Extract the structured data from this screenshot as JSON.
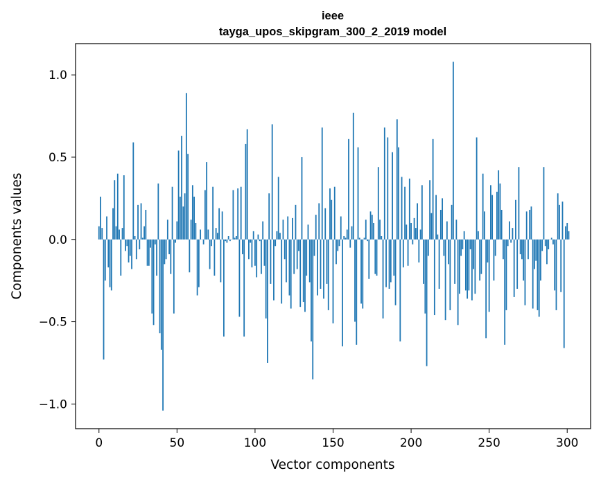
{
  "chart_data": {
    "type": "bar",
    "title_lines": [
      "ieee",
      "tayga_upos_skipgram_300_2_2019 model"
    ],
    "xlabel": "Vector components",
    "ylabel": "Components values",
    "xlim": [
      -15,
      315
    ],
    "ylim": [
      -1.15,
      1.19
    ],
    "x_ticks": [
      0,
      50,
      100,
      150,
      200,
      250,
      300
    ],
    "y_ticks": [
      1.0,
      0.5,
      0.0,
      -0.5,
      -1.0
    ],
    "y_tick_labels": [
      "1.0",
      "0.5",
      "0.0",
      "−0.5",
      "−1.0"
    ],
    "grid": false,
    "bar_color": "#1f77b4",
    "x_start": 0,
    "values": [
      0.08,
      0.26,
      0.07,
      -0.73,
      -0.25,
      0.14,
      -0.17,
      -0.29,
      -0.31,
      0.19,
      0.36,
      0.08,
      0.4,
      0.06,
      -0.22,
      0.07,
      0.39,
      -0.07,
      -0.04,
      -0.14,
      -0.1,
      -0.18,
      0.59,
      0.02,
      -0.12,
      0.21,
      -0.06,
      0.22,
      0.01,
      0.08,
      0.18,
      -0.16,
      -0.16,
      -0.05,
      -0.45,
      -0.52,
      -0.03,
      -0.22,
      0.34,
      -0.57,
      -0.67,
      -1.04,
      -0.15,
      -0.12,
      0.12,
      -0.09,
      -0.21,
      0.32,
      -0.45,
      -0.02,
      0.11,
      0.54,
      0.26,
      0.63,
      0.2,
      0.28,
      0.89,
      0.52,
      -0.2,
      0.12,
      0.33,
      0.26,
      0.1,
      -0.34,
      -0.29,
      0.06,
      0.0,
      -0.03,
      0.3,
      0.47,
      0.06,
      -0.18,
      -0.04,
      0.32,
      -0.22,
      0.07,
      0.04,
      0.19,
      -0.26,
      0.17,
      -0.59,
      -0.01,
      -0.02,
      0.02,
      -0.01,
      0.0,
      0.3,
      0.01,
      0.02,
      0.31,
      -0.47,
      0.32,
      -0.09,
      -0.59,
      0.58,
      0.67,
      -0.12,
      -0.02,
      -0.17,
      0.05,
      -0.16,
      -0.23,
      0.03,
      -0.01,
      -0.21,
      0.11,
      -0.16,
      -0.48,
      -0.75,
      0.28,
      -0.27,
      0.7,
      -0.37,
      -0.04,
      0.05,
      0.38,
      0.04,
      -0.39,
      0.12,
      -0.12,
      -0.26,
      0.14,
      -0.34,
      -0.42,
      0.13,
      -0.21,
      0.21,
      -0.18,
      -0.07,
      -0.41,
      0.5,
      -0.38,
      -0.44,
      -0.22,
      0.09,
      -0.26,
      -0.62,
      -0.85,
      -0.1,
      0.15,
      -0.34,
      0.22,
      -0.3,
      0.68,
      -0.36,
      0.19,
      -0.27,
      -0.43,
      0.31,
      0.24,
      -0.51,
      0.32,
      -0.15,
      -0.07,
      -0.04,
      0.14,
      -0.65,
      0.02,
      0.01,
      0.06,
      0.61,
      -0.05,
      0.08,
      0.77,
      -0.5,
      -0.64,
      0.56,
      0.01,
      -0.39,
      -0.42,
      0.01,
      0.12,
      -0.01,
      -0.24,
      0.17,
      0.15,
      0.1,
      -0.21,
      -0.22,
      0.44,
      0.12,
      0.02,
      -0.48,
      0.68,
      -0.29,
      0.62,
      -0.3,
      -0.26,
      0.53,
      -0.22,
      -0.4,
      0.73,
      0.56,
      -0.62,
      0.38,
      -0.17,
      0.32,
      0.09,
      -0.16,
      0.37,
      0.1,
      -0.03,
      0.13,
      0.07,
      0.22,
      -0.14,
      0.06,
      0.33,
      -0.27,
      -0.45,
      -0.77,
      -0.1,
      0.36,
      0.16,
      0.61,
      -0.46,
      0.27,
      0.03,
      -0.3,
      0.18,
      0.25,
      -0.1,
      -0.49,
      0.11,
      -0.15,
      -0.43,
      0.21,
      1.08,
      -0.27,
      0.12,
      -0.52,
      -0.33,
      -0.1,
      -0.06,
      0.05,
      -0.31,
      -0.36,
      -0.31,
      -0.06,
      -0.37,
      -0.18,
      -0.33,
      0.62,
      0.05,
      -0.25,
      -0.21,
      0.4,
      0.17,
      -0.6,
      -0.14,
      -0.44,
      0.33,
      0.27,
      -0.25,
      -0.1,
      0.29,
      0.42,
      0.34,
      0.18,
      -0.12,
      -0.64,
      -0.43,
      -0.04,
      0.11,
      -0.02,
      0.07,
      -0.35,
      0.24,
      -0.3,
      0.44,
      -0.09,
      -0.12,
      -0.25,
      -0.4,
      0.17,
      -0.12,
      0.18,
      0.2,
      -0.42,
      -0.18,
      -0.13,
      -0.43,
      -0.47,
      -0.25,
      -0.07,
      0.44,
      -0.04,
      -0.15,
      -0.06,
      0.0,
      0.01,
      -0.03,
      -0.31,
      -0.43,
      0.28,
      0.21,
      -0.32,
      0.23,
      -0.66,
      0.08,
      0.1,
      0.05
    ]
  }
}
